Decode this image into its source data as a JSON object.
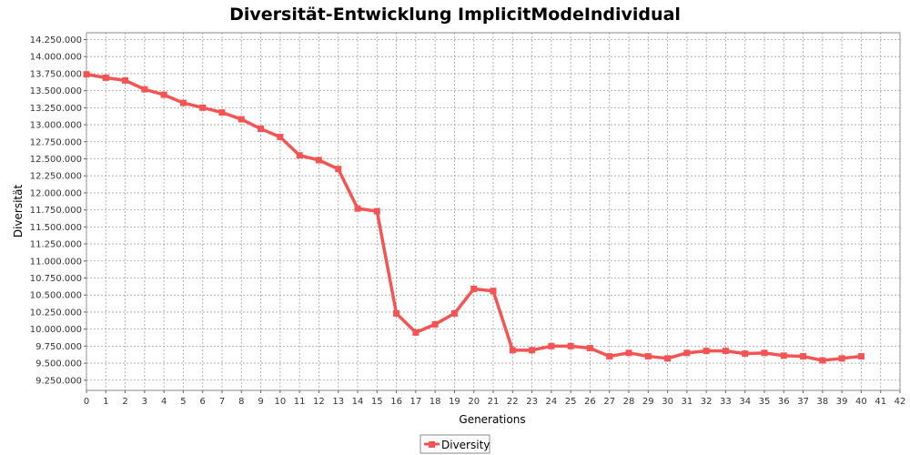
{
  "chart_data": {
    "type": "line",
    "title": "Diversität-Entwicklung ImplicitModeIndividual",
    "xlabel": "Generations",
    "ylabel": "Diversität",
    "xlim": [
      0,
      42
    ],
    "ylim": [
      9100000,
      14350000
    ],
    "x_ticks": [
      0,
      1,
      2,
      3,
      4,
      5,
      6,
      7,
      8,
      9,
      10,
      11,
      12,
      13,
      14,
      15,
      16,
      17,
      18,
      19,
      20,
      21,
      22,
      23,
      24,
      25,
      26,
      27,
      28,
      29,
      30,
      31,
      32,
      33,
      34,
      35,
      36,
      37,
      38,
      39,
      40,
      41,
      42
    ],
    "y_ticks": [
      {
        "value": 9250000,
        "label": "9.250.000"
      },
      {
        "value": 9500000,
        "label": "9.500.000"
      },
      {
        "value": 9750000,
        "label": "9.750.000"
      },
      {
        "value": 10000000,
        "label": "10.000.000"
      },
      {
        "value": 10250000,
        "label": "10.250.000"
      },
      {
        "value": 10500000,
        "label": "10.500.000"
      },
      {
        "value": 10750000,
        "label": "10.750.000"
      },
      {
        "value": 11000000,
        "label": "11.000.000"
      },
      {
        "value": 11250000,
        "label": "11.250.000"
      },
      {
        "value": 11500000,
        "label": "11.500.000"
      },
      {
        "value": 11750000,
        "label": "11.750.000"
      },
      {
        "value": 12000000,
        "label": "12.000.000"
      },
      {
        "value": 12250000,
        "label": "12.250.000"
      },
      {
        "value": 12500000,
        "label": "12.500.000"
      },
      {
        "value": 12750000,
        "label": "12.750.000"
      },
      {
        "value": 13000000,
        "label": "13.000.000"
      },
      {
        "value": 13250000,
        "label": "13.250.000"
      },
      {
        "value": 13500000,
        "label": "13.500.000"
      },
      {
        "value": 13750000,
        "label": "13.750.000"
      },
      {
        "value": 14000000,
        "label": "14.000.000"
      },
      {
        "value": 14250000,
        "label": "14.250.000"
      }
    ],
    "grid": true,
    "legend_position": "bottom-center",
    "series": [
      {
        "name": "Diversity",
        "color": "#f55454",
        "marker": "square",
        "x": [
          0,
          1,
          2,
          3,
          4,
          5,
          6,
          7,
          8,
          9,
          10,
          11,
          12,
          13,
          14,
          15,
          16,
          17,
          18,
          19,
          20,
          21,
          22,
          23,
          24,
          25,
          26,
          27,
          28,
          29,
          30,
          31,
          32,
          33,
          34,
          35,
          36,
          37,
          38,
          39,
          40
        ],
        "values": [
          13740000,
          13690000,
          13650000,
          13520000,
          13440000,
          13320000,
          13250000,
          13180000,
          13080000,
          12940000,
          12820000,
          12550000,
          12480000,
          12350000,
          11770000,
          11730000,
          10230000,
          9950000,
          10070000,
          10230000,
          10590000,
          10560000,
          9690000,
          9690000,
          9750000,
          9750000,
          9720000,
          9600000,
          9650000,
          9600000,
          9570000,
          9650000,
          9680000,
          9680000,
          9640000,
          9650000,
          9610000,
          9600000,
          9540000,
          9570000,
          9600000
        ]
      }
    ]
  }
}
